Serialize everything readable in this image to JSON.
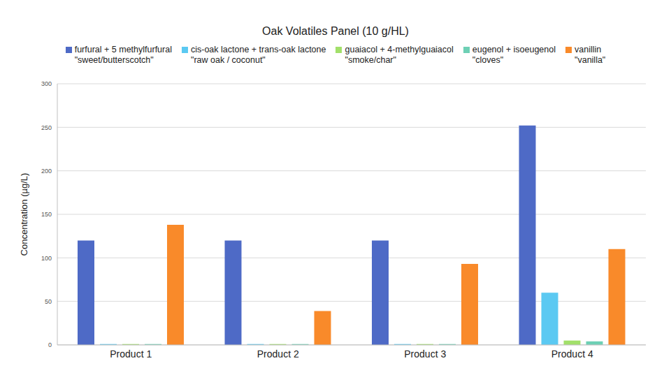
{
  "chart_data": {
    "type": "bar",
    "title": "Oak Volatiles Panel (10 g/HL)",
    "y_label": "Concentration (µg/L)",
    "categories": [
      "Product 1",
      "Product 2",
      "Product 3",
      "Product 4"
    ],
    "series": [
      {
        "name": "furfural + 5 methylfurfural",
        "descriptor": "\"sweet/butterscotch\"",
        "color": "#4e6ac6",
        "values": [
          120,
          120,
          120,
          252
        ]
      },
      {
        "name": "cis-oak lactone + trans-oak lactone",
        "descriptor": "\"raw oak / coconut\"",
        "color": "#5bc9f2",
        "values": [
          1,
          1,
          1,
          60
        ]
      },
      {
        "name": "guaiacol + 4-methylguaiacol",
        "descriptor": "\"smoke/char\"",
        "color": "#a2e06a",
        "values": [
          1,
          1,
          1,
          5
        ]
      },
      {
        "name": "eugenol + isoeugenol",
        "descriptor": "\"cloves\"",
        "color": "#6ed0b5",
        "values": [
          1,
          1,
          1,
          4
        ]
      },
      {
        "name": "vanillin",
        "descriptor": "\"vanilla\"",
        "color": "#f98a2a",
        "values": [
          138,
          39,
          93,
          110
        ]
      }
    ],
    "ylim": [
      0,
      300
    ],
    "yticks": [
      0,
      50,
      100,
      150,
      200,
      250,
      300
    ],
    "grid": true,
    "legend": "top"
  }
}
